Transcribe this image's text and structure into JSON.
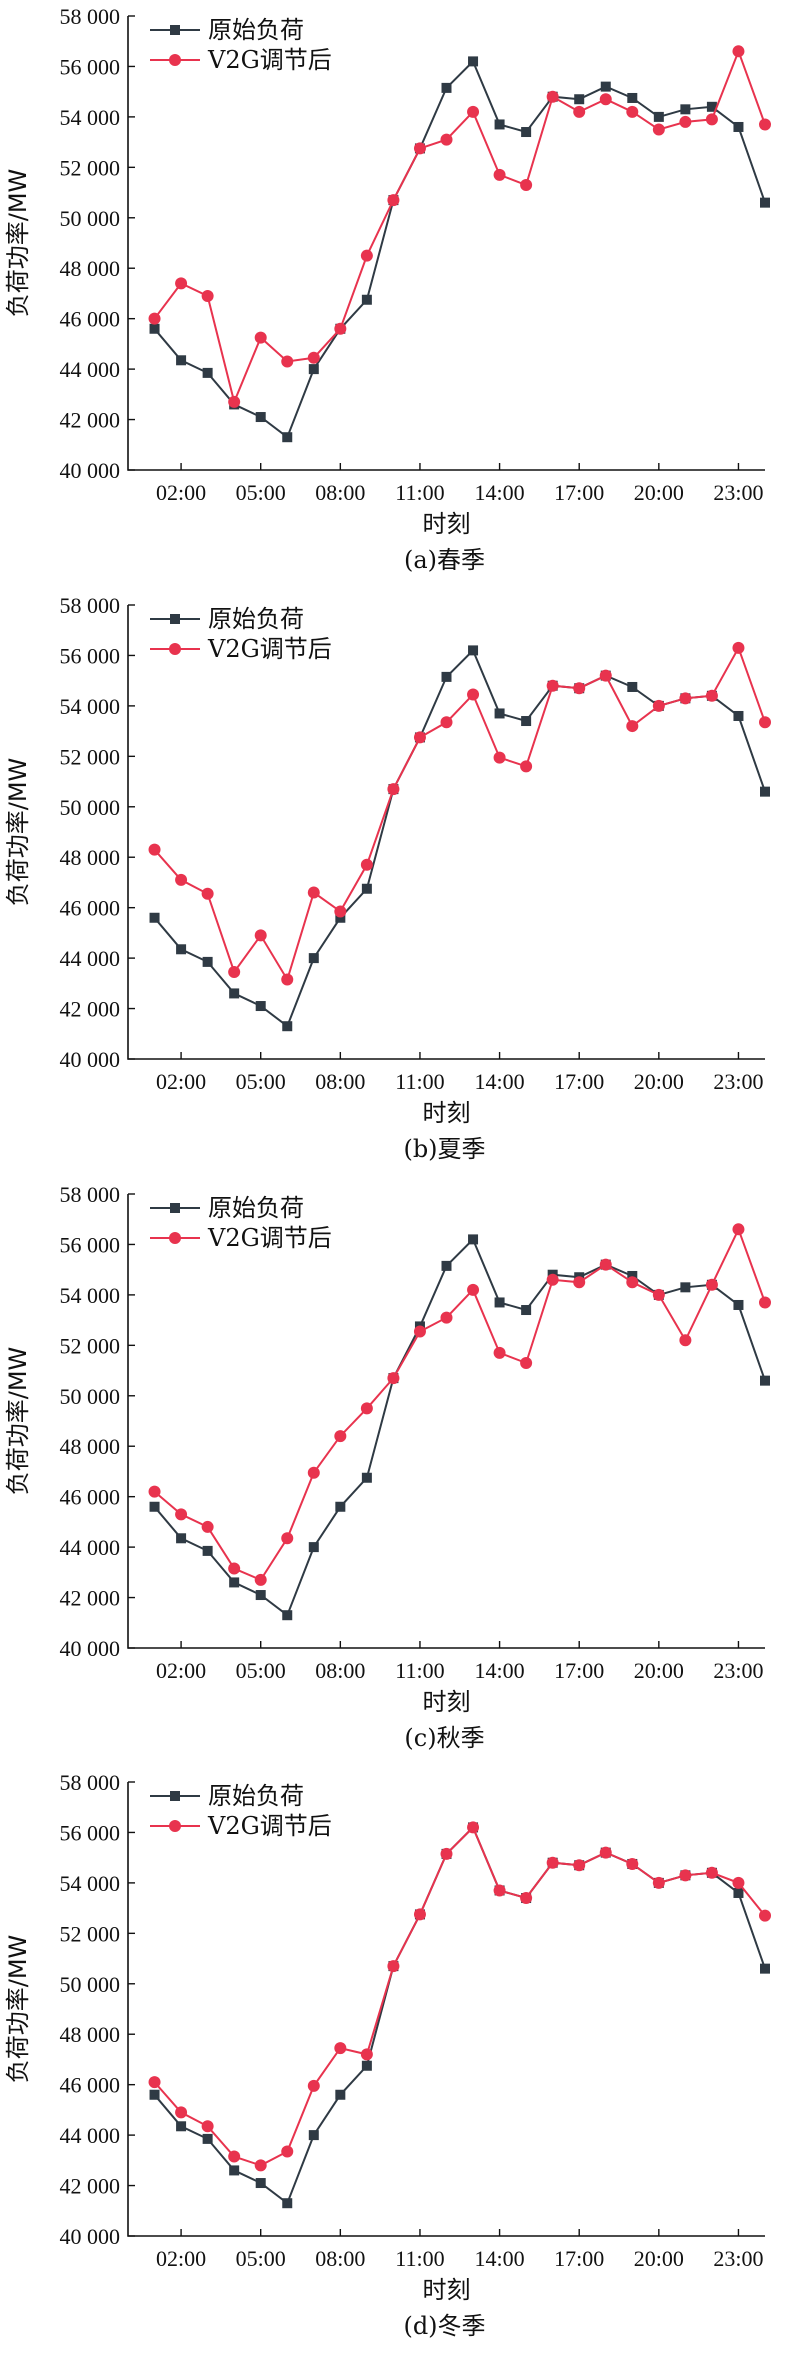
{
  "chart_data": [
    {
      "type": "line",
      "caption": "(a)春季",
      "xlabel": "时刻",
      "ylabel": "负荷功率/MW",
      "ylim": [
        40000,
        58000
      ],
      "yticks": [
        40000,
        42000,
        44000,
        46000,
        48000,
        50000,
        52000,
        54000,
        56000,
        58000
      ],
      "ytick_labels": [
        "40 000",
        "42 000",
        "44 000",
        "46 000",
        "48 000",
        "50 000",
        "52 000",
        "54 000",
        "56 000",
        "58 000"
      ],
      "xlim": [
        0,
        24
      ],
      "xticks": [
        2,
        5,
        8,
        11,
        14,
        17,
        20,
        23
      ],
      "xtick_labels": [
        "02:00",
        "05:00",
        "08:00",
        "11:00",
        "14:00",
        "17:00",
        "20:00",
        "23:00"
      ],
      "x": [
        1,
        2,
        3,
        4,
        5,
        6,
        7,
        8,
        9,
        10,
        11,
        12,
        13,
        14,
        15,
        16,
        17,
        18,
        19,
        20,
        21,
        22,
        23,
        24
      ],
      "legend_position": "top-left",
      "series": [
        {
          "name": "原始负荷",
          "marker": "square",
          "color": "#2f3a44",
          "values": [
            45600,
            44350,
            43850,
            42600,
            42100,
            41300,
            44000,
            45600,
            46750,
            50700,
            52750,
            55150,
            56200,
            53700,
            53400,
            54800,
            54700,
            55200,
            54750,
            54000,
            54300,
            54400,
            53600,
            50600
          ]
        },
        {
          "name": "V2G调节后",
          "marker": "circle",
          "color": "#e8334e",
          "values": [
            46000,
            47400,
            46900,
            42700,
            45250,
            44300,
            44450,
            45600,
            48500,
            50700,
            52750,
            53100,
            54200,
            51700,
            51300,
            54800,
            54200,
            54700,
            54200,
            53500,
            53800,
            53900,
            56600,
            53700
          ]
        }
      ]
    },
    {
      "type": "line",
      "caption": "(b)夏季",
      "xlabel": "时刻",
      "ylabel": "负荷功率/MW",
      "ylim": [
        40000,
        58000
      ],
      "yticks": [
        40000,
        42000,
        44000,
        46000,
        48000,
        50000,
        52000,
        54000,
        56000,
        58000
      ],
      "ytick_labels": [
        "40 000",
        "42 000",
        "44 000",
        "46 000",
        "48 000",
        "50 000",
        "52 000",
        "54 000",
        "56 000",
        "58 000"
      ],
      "xlim": [
        0,
        24
      ],
      "xticks": [
        2,
        5,
        8,
        11,
        14,
        17,
        20,
        23
      ],
      "xtick_labels": [
        "02:00",
        "05:00",
        "08:00",
        "11:00",
        "14:00",
        "17:00",
        "20:00",
        "23:00"
      ],
      "x": [
        1,
        2,
        3,
        4,
        5,
        6,
        7,
        8,
        9,
        10,
        11,
        12,
        13,
        14,
        15,
        16,
        17,
        18,
        19,
        20,
        21,
        22,
        23,
        24
      ],
      "legend_position": "top-left",
      "series": [
        {
          "name": "原始负荷",
          "marker": "square",
          "color": "#2f3a44",
          "values": [
            45600,
            44350,
            43850,
            42600,
            42100,
            41300,
            44000,
            45600,
            46750,
            50700,
            52750,
            55150,
            56200,
            53700,
            53400,
            54800,
            54700,
            55200,
            54750,
            54000,
            54300,
            54400,
            53600,
            50600
          ]
        },
        {
          "name": "V2G调节后",
          "marker": "circle",
          "color": "#e8334e",
          "values": [
            48300,
            47100,
            46550,
            43450,
            44900,
            43150,
            46600,
            45850,
            47700,
            50700,
            52750,
            53350,
            54450,
            51950,
            51600,
            54800,
            54700,
            55200,
            53200,
            54000,
            54300,
            54400,
            56300,
            53350
          ]
        }
      ]
    },
    {
      "type": "line",
      "caption": "(c)秋季",
      "xlabel": "时刻",
      "ylabel": "负荷功率/MW",
      "ylim": [
        40000,
        58000
      ],
      "yticks": [
        40000,
        42000,
        44000,
        46000,
        48000,
        50000,
        52000,
        54000,
        56000,
        58000
      ],
      "ytick_labels": [
        "40 000",
        "42 000",
        "44 000",
        "46 000",
        "48 000",
        "50 000",
        "52 000",
        "54 000",
        "56 000",
        "58 000"
      ],
      "xlim": [
        0,
        24
      ],
      "xticks": [
        2,
        5,
        8,
        11,
        14,
        17,
        20,
        23
      ],
      "xtick_labels": [
        "02:00",
        "05:00",
        "08:00",
        "11:00",
        "14:00",
        "17:00",
        "20:00",
        "23:00"
      ],
      "x": [
        1,
        2,
        3,
        4,
        5,
        6,
        7,
        8,
        9,
        10,
        11,
        12,
        13,
        14,
        15,
        16,
        17,
        18,
        19,
        20,
        21,
        22,
        23,
        24
      ],
      "legend_position": "top-left",
      "series": [
        {
          "name": "原始负荷",
          "marker": "square",
          "color": "#2f3a44",
          "values": [
            45600,
            44350,
            43850,
            42600,
            42100,
            41300,
            44000,
            45600,
            46750,
            50700,
            52750,
            55150,
            56200,
            53700,
            53400,
            54800,
            54700,
            55200,
            54750,
            54000,
            54300,
            54400,
            53600,
            50600
          ]
        },
        {
          "name": "V2G调节后",
          "marker": "circle",
          "color": "#e8334e",
          "values": [
            46200,
            45300,
            44800,
            43150,
            42700,
            44350,
            46950,
            48400,
            49500,
            50700,
            52550,
            53100,
            54200,
            51700,
            51300,
            54600,
            54500,
            55200,
            54500,
            54000,
            52200,
            54400,
            56600,
            53700
          ]
        }
      ]
    },
    {
      "type": "line",
      "caption": "(d)冬季",
      "xlabel": "时刻",
      "ylabel": "负荷功率/MW",
      "ylim": [
        40000,
        58000
      ],
      "yticks": [
        40000,
        42000,
        44000,
        46000,
        48000,
        50000,
        52000,
        54000,
        56000,
        58000
      ],
      "ytick_labels": [
        "40 000",
        "42 000",
        "44 000",
        "46 000",
        "48 000",
        "50 000",
        "52 000",
        "54 000",
        "56 000",
        "58 000"
      ],
      "xlim": [
        0,
        24
      ],
      "xticks": [
        2,
        5,
        8,
        11,
        14,
        17,
        20,
        23
      ],
      "xtick_labels": [
        "02:00",
        "05:00",
        "08:00",
        "11:00",
        "14:00",
        "17:00",
        "20:00",
        "23:00"
      ],
      "x": [
        1,
        2,
        3,
        4,
        5,
        6,
        7,
        8,
        9,
        10,
        11,
        12,
        13,
        14,
        15,
        16,
        17,
        18,
        19,
        20,
        21,
        22,
        23,
        24
      ],
      "legend_position": "top-left",
      "series": [
        {
          "name": "原始负荷",
          "marker": "square",
          "color": "#2f3a44",
          "values": [
            45600,
            44350,
            43850,
            42600,
            42100,
            41300,
            44000,
            45600,
            46750,
            50700,
            52750,
            55150,
            56200,
            53700,
            53400,
            54800,
            54700,
            55200,
            54750,
            54000,
            54300,
            54400,
            53600,
            50600
          ]
        },
        {
          "name": "V2G调节后",
          "marker": "circle",
          "color": "#e8334e",
          "values": [
            46100,
            44900,
            44350,
            43150,
            42800,
            43350,
            45950,
            47450,
            47200,
            50700,
            52750,
            55150,
            56200,
            53700,
            53400,
            54800,
            54700,
            55200,
            54750,
            54000,
            54300,
            54400,
            54000,
            52700
          ]
        }
      ]
    }
  ]
}
